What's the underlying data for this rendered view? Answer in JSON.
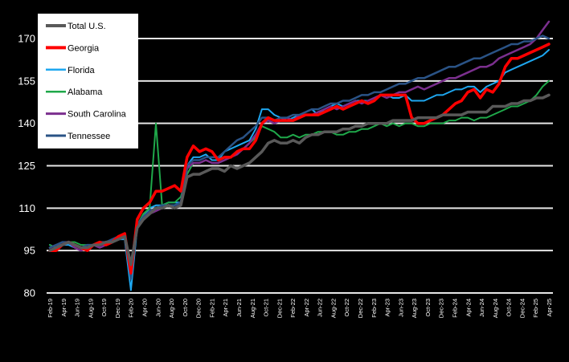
{
  "chart_data": {
    "type": "line",
    "title": "",
    "xlabel": "",
    "ylabel": "",
    "ylim": [
      80,
      178
    ],
    "yticks": [
      80,
      95,
      110,
      125,
      140,
      155,
      170
    ],
    "grid": "horizontal",
    "legend_position": "top-left",
    "background": "#000000",
    "x_tick_labels": [
      "Feb-19",
      "Apr-19",
      "Jun-19",
      "Aug-19",
      "Oct-19",
      "Dec-19",
      "Feb-20",
      "Apr-20",
      "Jun-20",
      "Aug-20",
      "Oct-20",
      "Dec-20",
      "Feb-21",
      "Apr-21",
      "Jun-21",
      "Aug-21",
      "Oct-21",
      "Dec-21",
      "Feb-22",
      "Apr-22",
      "Jun-22",
      "Aug-22",
      "Oct-22",
      "Dec-22",
      "Feb-23",
      "Apr-23",
      "Jun-23",
      "Aug-23",
      "Oct-23",
      "Dec-23",
      "Feb-24",
      "Apr-24",
      "Jun-24",
      "Aug-24",
      "Oct-24",
      "Dec-24",
      "Feb-25",
      "Apr-25"
    ],
    "series": [
      {
        "name": "Total U.S.",
        "color": "#595959",
        "width": 3.5,
        "values": [
          95,
          96,
          97,
          98,
          97,
          96,
          96,
          97,
          97,
          98,
          98,
          99,
          100,
          90,
          103,
          106,
          108,
          110,
          110,
          111,
          110,
          111,
          121,
          122,
          122,
          123,
          124,
          124,
          123,
          125,
          124,
          125,
          126,
          128,
          130,
          133,
          134,
          133,
          133,
          134,
          133,
          135,
          136,
          136,
          137,
          137,
          137,
          138,
          138,
          139,
          139,
          140,
          140,
          140,
          140,
          141,
          141,
          141,
          141,
          142,
          142,
          142,
          142,
          143,
          143,
          143,
          143,
          144,
          144,
          144,
          144,
          146,
          146,
          146,
          147,
          147,
          148,
          148,
          149,
          149,
          150
        ]
      },
      {
        "name": "Georgia",
        "color": "#ff0000",
        "width": 3.5,
        "values": [
          95,
          95,
          97,
          98,
          97,
          96,
          95,
          97,
          98,
          97,
          98,
          100,
          101,
          87,
          106,
          110,
          112,
          116,
          116,
          117,
          118,
          116,
          128,
          132,
          130,
          131,
          130,
          127,
          128,
          128,
          130,
          131,
          131,
          134,
          140,
          142,
          141,
          141,
          141,
          141,
          142,
          143,
          143,
          143,
          144,
          145,
          146,
          145,
          146,
          147,
          148,
          147,
          148,
          150,
          150,
          150,
          150,
          150,
          142,
          140,
          140,
          141,
          142,
          143,
          145,
          147,
          148,
          151,
          152,
          149,
          152,
          151,
          154,
          160,
          163,
          163,
          164,
          165,
          166,
          167,
          168
        ]
      },
      {
        "name": "Florida",
        "color": "#1ea7f0",
        "width": 2,
        "values": [
          97,
          96,
          97,
          97,
          96,
          95,
          96,
          97,
          98,
          98,
          98,
          99,
          99,
          81,
          103,
          107,
          110,
          111,
          111,
          112,
          112,
          112,
          125,
          128,
          128,
          129,
          127,
          127,
          130,
          131,
          132,
          133,
          134,
          138,
          145,
          145,
          143,
          142,
          141,
          142,
          143,
          144,
          145,
          143,
          145,
          146,
          147,
          146,
          147,
          148,
          148,
          148,
          149,
          150,
          150,
          149,
          149,
          150,
          148,
          148,
          148,
          149,
          150,
          150,
          151,
          152,
          152,
          153,
          153,
          151,
          153,
          154,
          155,
          158,
          159,
          160,
          161,
          162,
          163,
          164,
          166
        ]
      },
      {
        "name": "Alabama",
        "color": "#1fa84a",
        "width": 2,
        "values": [
          97,
          96,
          97,
          98,
          98,
          97,
          97,
          97,
          97,
          98,
          98,
          99,
          100,
          88,
          104,
          108,
          110,
          140,
          111,
          112,
          112,
          114,
          122,
          126,
          126,
          127,
          126,
          126,
          127,
          128,
          129,
          131,
          133,
          135,
          139,
          138,
          137,
          135,
          135,
          136,
          135,
          136,
          136,
          137,
          137,
          137,
          136,
          136,
          137,
          137,
          138,
          138,
          139,
          140,
          139,
          140,
          139,
          140,
          140,
          139,
          139,
          140,
          140,
          140,
          141,
          141,
          142,
          142,
          141,
          142,
          142,
          143,
          144,
          145,
          146,
          146,
          147,
          148,
          150,
          153,
          155
        ]
      },
      {
        "name": "South Carolina",
        "color": "#7b2f8e",
        "width": 2.5,
        "values": [
          96,
          97,
          97,
          98,
          96,
          95,
          96,
          97,
          96,
          97,
          98,
          99,
          100,
          89,
          103,
          106,
          108,
          109,
          110,
          111,
          111,
          112,
          124,
          126,
          126,
          127,
          126,
          126,
          127,
          128,
          129,
          131,
          133,
          136,
          140,
          141,
          140,
          141,
          142,
          141,
          143,
          143,
          143,
          144,
          145,
          146,
          145,
          146,
          147,
          148,
          147,
          148,
          149,
          150,
          149,
          150,
          151,
          151,
          152,
          153,
          152,
          153,
          154,
          155,
          156,
          156,
          157,
          158,
          159,
          160,
          160,
          161,
          163,
          164,
          165,
          166,
          167,
          168,
          170,
          173,
          176
        ]
      },
      {
        "name": "Tennessee",
        "color": "#2a5386",
        "width": 2.5,
        "values": [
          96,
          97,
          98,
          98,
          97,
          96,
          97,
          97,
          98,
          98,
          99,
          100,
          100,
          85,
          104,
          107,
          109,
          110,
          111,
          111,
          111,
          112,
          125,
          127,
          127,
          128,
          128,
          128,
          130,
          132,
          134,
          135,
          137,
          139,
          142,
          142,
          141,
          142,
          142,
          143,
          143,
          144,
          145,
          145,
          146,
          147,
          147,
          148,
          148,
          149,
          150,
          150,
          151,
          151,
          152,
          153,
          154,
          154,
          155,
          156,
          156,
          157,
          158,
          159,
          160,
          160,
          161,
          162,
          163,
          163,
          164,
          165,
          166,
          167,
          168,
          168,
          169,
          169,
          170,
          171,
          170
        ]
      }
    ]
  }
}
